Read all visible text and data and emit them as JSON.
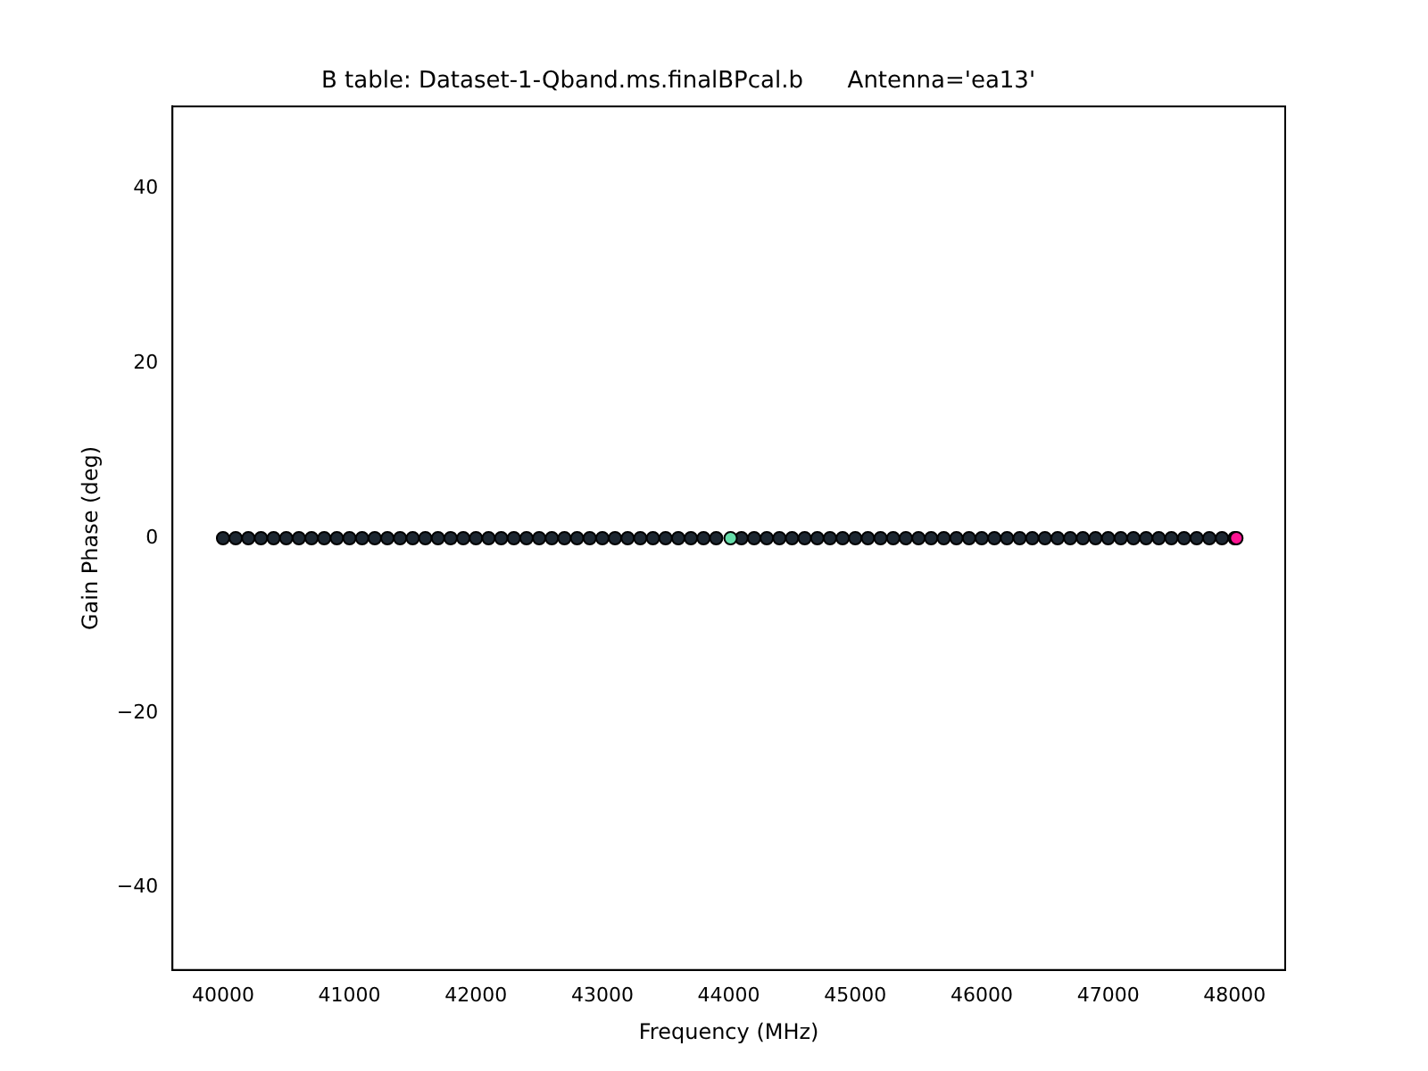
{
  "chart_data": {
    "type": "scatter",
    "title": "B table: Dataset-1-Qband.ms.finalBPcal.b      Antenna='ea13'",
    "xlabel": "Frequency (MHz)",
    "ylabel": "Gain Phase (deg)",
    "marker": "circle",
    "legend": false,
    "xlim": [
      39600,
      48400
    ],
    "xticks": [
      40000,
      41000,
      42000,
      43000,
      44000,
      45000,
      46000,
      47000,
      48000
    ],
    "ylim": [
      -49.4,
      49.4
    ],
    "yticks": [
      -40,
      -20,
      0,
      20,
      40
    ],
    "series": [
      {
        "color": "#1c2630",
        "x": [
          40000,
          40100,
          40200,
          40300,
          40400,
          40500,
          40600,
          40700,
          40800,
          40900,
          41000,
          41100,
          41200,
          41300,
          41400,
          41500,
          41600,
          41700,
          41800,
          41900,
          42000,
          42100,
          42200,
          42300,
          42400,
          42500,
          42600,
          42700,
          42800,
          42900,
          43000,
          43100,
          43200,
          43300,
          43400,
          43500,
          43600,
          43700,
          43800,
          43900,
          44100,
          44200,
          44300,
          44400,
          44500,
          44600,
          44700,
          44800,
          44900,
          45000,
          45100,
          45200,
          45300,
          45400,
          45500,
          45600,
          45700,
          45800,
          45900,
          46000,
          46100,
          46200,
          46300,
          46400,
          46500,
          46600,
          46700,
          46800,
          46900,
          47000,
          47100,
          47200,
          47300,
          47400,
          47500,
          47600,
          47700,
          47800,
          47900,
          48000
        ],
        "values": [
          0,
          0,
          0,
          0,
          0,
          0,
          0,
          0,
          0,
          0,
          0,
          0,
          0,
          0,
          0,
          0,
          0,
          0,
          0,
          0,
          0,
          0,
          0,
          0,
          0,
          0,
          0,
          0,
          0,
          0,
          0,
          0,
          0,
          0,
          0,
          0,
          0,
          0,
          0,
          0,
          0,
          0,
          0,
          0,
          0,
          0,
          0,
          0,
          0,
          0,
          0,
          0,
          0,
          0,
          0,
          0,
          0,
          0,
          0,
          0,
          0,
          0,
          0,
          0,
          0,
          0,
          0,
          0,
          0,
          0,
          0,
          0,
          0,
          0,
          0,
          0,
          0,
          0,
          0,
          0
        ]
      },
      {
        "color": "#66ddaa",
        "x": [
          44014
        ],
        "values": [
          0
        ]
      },
      {
        "color": "#ff1493",
        "x": [
          48014
        ],
        "values": [
          0
        ]
      }
    ]
  }
}
